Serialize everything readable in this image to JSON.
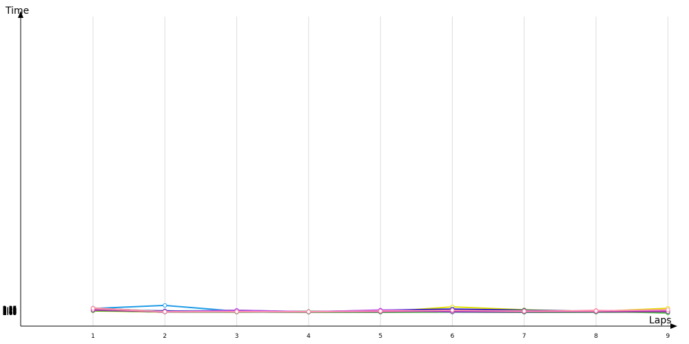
{
  "chart_data": {
    "type": "line",
    "xlabel": "Laps",
    "ylabel": "Time",
    "x": [
      1,
      2,
      3,
      4,
      5,
      6,
      7,
      8,
      9
    ],
    "ylim_seconds": [
      424,
      460
    ],
    "yticks": [
      "2:07",
      "2:08",
      "2:09",
      "2:10",
      "2:11",
      "2:12",
      "2:13",
      "2:14",
      "2:15",
      "2:16",
      "2:17",
      "2:18",
      "2:19",
      "2:20",
      "2:21",
      "2:22",
      "2:23",
      "2:24",
      "2:25",
      "2:26",
      "2:27",
      "2:28",
      "2:29",
      "2:30",
      "2:31",
      "2:32",
      "2:33",
      "2:34",
      "2:35",
      "2:36",
      "2:37"
    ],
    "grid": true,
    "series": [
      {
        "color": "#1e9be8",
        "times": [
          "2:34.9",
          "2:54.0",
          "2:17.9",
          "2:13.1",
          "2:19.4",
          "2:18.1",
          "2:15.0",
          "2:14.6",
          "2:14.5"
        ]
      },
      {
        "color": "#3ccfd8",
        "times": [
          "2:34.9",
          "2:18.8",
          "2:23.8",
          "2:14.9",
          "2:23.8",
          "2:19.9",
          "2:17.4",
          "2:19.9",
          "2:19.3"
        ]
      },
      {
        "color": "#2ec0f0",
        "times": [
          "2:38.3",
          "2:15.0",
          "2:19.4",
          "2:13.1",
          "2:19.4",
          "2:18.1",
          "2:15.0",
          "2:14.6",
          "2:14.5"
        ]
      },
      {
        "color": "#ff6fd0",
        "times": [
          "2:37.8",
          "2:15.5",
          "2:15.8",
          "2:14.6",
          "2:19.2",
          "2:19.5",
          "2:16.5",
          "2:15.5",
          "2:14.9"
        ]
      },
      {
        "color": "#ffa040",
        "times": [
          "2:36.8",
          "2:15.8",
          "2:15.3",
          "2:14.9",
          "2:15.8",
          "2:15.8",
          "2:15.5",
          "2:15.3",
          "2:15.5"
        ]
      },
      {
        "color": "#e0e000",
        "times": [
          "2:20.3",
          "2:13.0",
          "2:13.0",
          "2:13.3",
          "2:13.4",
          "2:45.0",
          "2:26.6",
          "2:17.0",
          "2:36.3"
        ]
      },
      {
        "color": "#e01010",
        "times": [
          "2:29.8",
          "2:13.1",
          "2:14.2",
          "2:12.2",
          "2:12.9",
          "2:13.4",
          "2:12.8",
          "2:13.5",
          "2:15.4"
        ]
      },
      {
        "color": "#ff0000",
        "times": [
          "2:25.4",
          "2:14.8",
          "2:15.6",
          "2:16.0",
          "2:15.2",
          "2:15.8",
          "2:15.4",
          "2:21.7",
          "2:15.7"
        ]
      },
      {
        "color": "#0000e0",
        "times": [
          "2:24.8",
          "2:13.9",
          "2:13.6",
          "2:12.8",
          "2:15.6",
          "2:12.8",
          "2:12.1",
          "2:12.6",
          "2:13.7"
        ]
      },
      {
        "color": "#0000cc",
        "times": [
          "2:28.0",
          "2:15.0",
          "2:18.8",
          "2:12.8",
          "2:23.7",
          "2:31.1",
          "2:25.1",
          "2:17.0",
          "2:17.6"
        ]
      },
      {
        "color": "#2828c8",
        "times": [
          "2:22.3",
          "2:20.6",
          "2:16.0",
          "2:14.2",
          "2:15.6",
          "2:15.6",
          "2:14.9",
          "2:15.9",
          "2:15.2"
        ]
      },
      {
        "color": "#2e9e2e",
        "times": [
          "2:34.0",
          "2:15.4",
          "2:15.9",
          "2:17.0",
          "2:19.7",
          "2:15.7",
          "2:23.5",
          "2:15.1",
          "2:16.4"
        ]
      },
      {
        "color": "#22bb22",
        "times": [
          "2:33.0",
          "2:15.1",
          "2:23.3",
          "2:14.0",
          "2:15.2",
          "2:18.0",
          "2:15.1",
          "2:17.2",
          "2:07.8"
        ]
      },
      {
        "color": "#33cc33",
        "times": [
          "2:22.8",
          "2:15.0",
          "2:14.0",
          "2:11.6",
          "2:11.7",
          "2:12.5",
          "2:12.1",
          "2:12.1",
          "2:13.4"
        ]
      },
      {
        "color": "#0aa00a",
        "times": [
          "2:22.1",
          "2:15.3",
          "2:13.8",
          "2:14.9",
          "2:16.7",
          "2:15.5",
          "2:15.2",
          "2:15.6",
          "2:15.8"
        ]
      },
      {
        "color": "#444444",
        "times": [
          "2:33.1",
          "2:15.9",
          "2:14.5",
          "2:15.7",
          "2:16.9",
          "2:14.8",
          "2:15.1",
          "2:15.6",
          "2:17.3"
        ]
      },
      {
        "color": "#8a8a6a",
        "times": [
          "2:33.8",
          "2:14.8",
          "2:17.3",
          "2:14.0",
          "2:17.5",
          "2:17.2",
          "2:16.8",
          "2:15.0",
          "2:15.5"
        ]
      },
      {
        "color": "#b0b0b0",
        "times": [
          "2:34.5",
          "2:15.2",
          "2:16.1",
          "2:15.0",
          "2:16.0",
          "2:16.2",
          "2:16.5",
          "2:16.0",
          "2:16.0"
        ]
      },
      {
        "color": "#c040e0",
        "times": [
          "2:25.8",
          "2:15.6",
          "2:24.0",
          "2:14.8",
          "2:25.4",
          "2:19.5",
          "2:20.1",
          "2:20.1",
          "2:24.3"
        ]
      },
      {
        "color": "#b050e0",
        "times": [
          "2:25.0",
          "2:15.4",
          "2:22.2",
          "2:14.5",
          "2:22.2",
          "2:14.6",
          "2:15.0",
          "2:16.8",
          "2:14.9"
        ]
      },
      {
        "color": "#9e3aa0",
        "times": [
          "2:25.5",
          "2:15.3",
          "2:15.5",
          "2:14.7",
          "2:14.8",
          "2:20.5",
          "2:15.5",
          "2:15.0",
          "2:15.2"
        ]
      },
      {
        "color": "#ff90b0",
        "times": [
          "2:35.3",
          "2:15.0",
          "2:15.5",
          "2:15.0",
          "2:19.0",
          "2:24.3",
          "2:18.6",
          "2:20.5",
          "2:27.3"
        ]
      }
    ]
  }
}
